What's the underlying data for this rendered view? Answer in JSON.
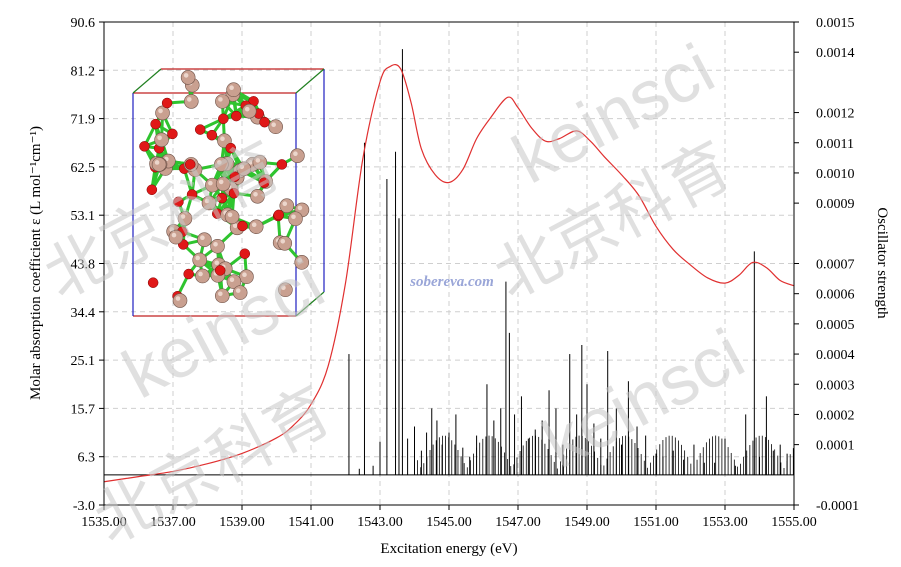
{
  "chart_data": {
    "type": "line",
    "xlabel": "Excitation energy (eV)",
    "ylabel_left": "Molar absorption coefficient  ε (L mol⁻¹cm⁻¹)",
    "ylabel_right": "Oscillator strength",
    "xlim": [
      1535.0,
      1555.0
    ],
    "ylim_left": [
      -3.0,
      90.6
    ],
    "ylim_right": [
      -0.0001,
      0.0015
    ],
    "x_ticks": [
      "1535.00",
      "1537.00",
      "1539.00",
      "1541.00",
      "1543.00",
      "1545.00",
      "1547.00",
      "1549.00",
      "1551.00",
      "1553.00",
      "1555.00"
    ],
    "y_left_ticks": [
      "-3.0",
      "6.3",
      "15.7",
      "25.1",
      "34.4",
      "43.8",
      "53.1",
      "62.5",
      "71.9",
      "81.2",
      "90.6"
    ],
    "y_right_ticks": [
      "-0.0001",
      "0.0001",
      "0.0002",
      "0.0003",
      "0.0004",
      "0.0005",
      "0.0006",
      "0.0007",
      "0.0009",
      "0.0010",
      "0.0011",
      "0.0012",
      "0.0014",
      "0.0015"
    ],
    "grid": true,
    "series": [
      {
        "kind": "spectrum-curve",
        "color": "#e03030",
        "x": [
          1535.0,
          1536.0,
          1537.0,
          1538.0,
          1539.0,
          1540.0,
          1540.5,
          1541.0,
          1541.5,
          1542.0,
          1542.5,
          1543.0,
          1543.3,
          1543.6,
          1543.9,
          1544.2,
          1544.6,
          1545.0,
          1545.4,
          1545.8,
          1546.2,
          1546.7,
          1547.0,
          1547.4,
          1547.8,
          1548.2,
          1548.7,
          1549.1,
          1549.5,
          1550.0,
          1550.5,
          1551.0,
          1551.5,
          1552.0,
          1552.5,
          1553.0,
          1553.4,
          1553.8,
          1554.2,
          1554.6,
          1555.0
        ],
        "y": [
          1.5,
          2.5,
          3.5,
          5.0,
          7.0,
          10.0,
          12.5,
          16.5,
          24.0,
          40.0,
          64.0,
          79.0,
          82.0,
          81.5,
          75.0,
          66.0,
          61.0,
          59.5,
          62.0,
          68.0,
          72.0,
          76.0,
          74.0,
          70.0,
          67.5,
          68.0,
          69.5,
          67.5,
          64.5,
          61.0,
          57.0,
          51.0,
          46.5,
          43.5,
          41.0,
          40.0,
          41.5,
          44.0,
          43.0,
          40.5,
          39.5
        ]
      }
    ],
    "sticks": {
      "color": "#000000",
      "x": [
        1542.1,
        1542.4,
        1542.55,
        1542.8,
        1543.0,
        1543.2,
        1543.45,
        1543.55,
        1543.65,
        1543.8,
        1544.0,
        1544.2,
        1544.35,
        1544.5,
        1544.65,
        1544.8,
        1545.0,
        1545.2,
        1545.4,
        1545.6,
        1545.8,
        1546.1,
        1546.3,
        1546.5,
        1546.65,
        1546.75,
        1546.9,
        1547.1,
        1547.3,
        1547.5,
        1547.7,
        1547.9,
        1548.1,
        1548.3,
        1548.5,
        1548.7,
        1548.85,
        1549.0,
        1549.2,
        1549.4,
        1549.6,
        1549.85,
        1550.0,
        1550.2,
        1550.45,
        1550.7,
        1551.0,
        1551.2,
        1551.5,
        1551.8,
        1552.1,
        1552.4,
        1552.7,
        1553.0,
        1553.3,
        1553.6,
        1553.85,
        1554.0,
        1554.2,
        1554.4,
        1554.6,
        1554.8
      ],
      "f": [
        0.0004,
        2e-05,
        0.0011,
        3e-05,
        0.00011,
        0.00098,
        0.00107,
        0.00085,
        0.00141,
        0.00012,
        0.00016,
        8e-05,
        0.00014,
        0.00022,
        0.00018,
        0.0001,
        0.00014,
        0.0002,
        9e-05,
        6e-05,
        0.00013,
        0.0003,
        0.00018,
        0.00022,
        0.00064,
        0.00047,
        0.0002,
        0.00026,
        0.00012,
        0.00015,
        0.00018,
        0.00028,
        0.00022,
        0.0001,
        0.0004,
        0.0002,
        0.00043,
        0.0003,
        0.00017,
        0.00012,
        0.00041,
        0.00022,
        0.0001,
        0.00031,
        0.00016,
        0.00013,
        7e-05,
        6e-05,
        8e-05,
        5e-05,
        0.0001,
        4e-05,
        4e-05,
        0.00012,
        3e-05,
        0.0002,
        0.00074,
        6e-05,
        0.00026,
        8e-05,
        0.0001,
        7e-05
      ]
    }
  },
  "watermarks": {
    "brand": "keinsci",
    "cjk": "北京科育",
    "site": "sobereva.com"
  }
}
